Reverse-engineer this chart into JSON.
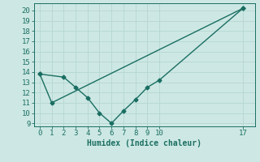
{
  "line1_x": [
    0,
    1,
    17
  ],
  "line1_y": [
    13.8,
    11.0,
    20.2
  ],
  "line2_x": [
    0,
    2,
    3,
    4,
    5,
    6,
    7,
    8,
    9,
    10,
    17
  ],
  "line2_y": [
    13.8,
    13.5,
    12.5,
    11.5,
    10.0,
    9.0,
    10.2,
    11.3,
    12.5,
    13.2,
    20.2
  ],
  "line_color": "#1a6e62",
  "bg_color": "#cde8e4",
  "grid_color": "#b8d8d4",
  "xlabel": "Humidex (Indice chaleur)",
  "xlim": [
    -0.5,
    18.0
  ],
  "ylim": [
    8.7,
    20.7
  ],
  "yticks": [
    9,
    10,
    11,
    12,
    13,
    14,
    15,
    16,
    17,
    18,
    19,
    20
  ],
  "xticks": [
    0,
    1,
    2,
    3,
    4,
    5,
    6,
    7,
    8,
    9,
    10,
    17
  ],
  "marker": "D",
  "markersize": 2.5,
  "linewidth": 1.0,
  "xlabel_fontsize": 7,
  "tick_fontsize": 6.5
}
